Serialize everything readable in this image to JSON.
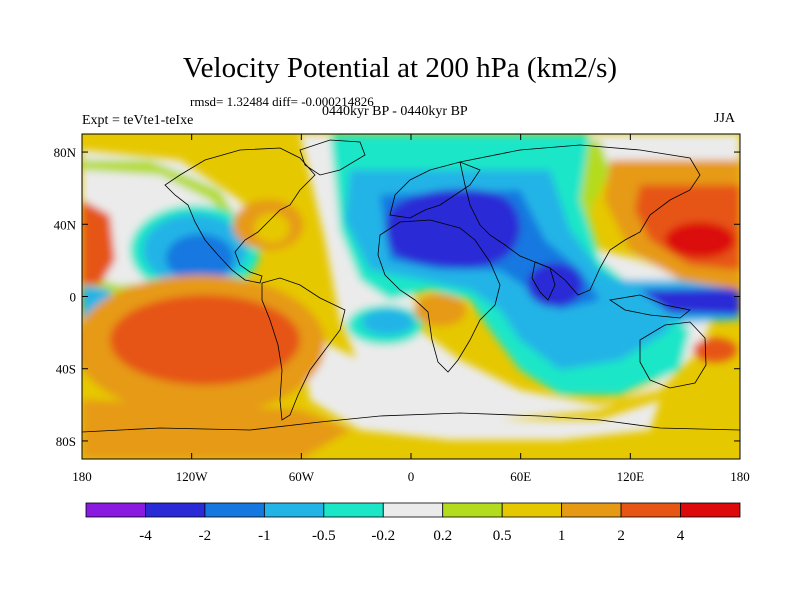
{
  "figure": {
    "title": "Velocity Potential at 200 hPa (km2/s)",
    "stats": "rmsd= 1.32484 diff= -0.000214826",
    "experiment": "Expt = teVte1-teIxe",
    "period": "0440kyr BP - 0440kyr BP",
    "season": "JJA"
  },
  "map": {
    "longitude_range": [
      -180,
      180
    ],
    "latitude_range": [
      -90,
      90
    ],
    "x_tick_labels": [
      {
        "lon": -180,
        "label": "180"
      },
      {
        "lon": -120,
        "label": "120W"
      },
      {
        "lon": -60,
        "label": "60W"
      },
      {
        "lon": 0,
        "label": "0"
      },
      {
        "lon": 60,
        "label": "60E"
      },
      {
        "lon": 120,
        "label": "120E"
      },
      {
        "lon": 180,
        "label": "180"
      }
    ],
    "y_tick_labels": [
      {
        "lat": 80,
        "label": "80N"
      },
      {
        "lat": 40,
        "label": "40N"
      },
      {
        "lat": 0,
        "label": "0"
      },
      {
        "lat": -40,
        "label": "40S"
      },
      {
        "lat": -80,
        "label": "80S"
      }
    ]
  },
  "colorbar": {
    "colors": [
      "#8a1ae0",
      "#2a2ad6",
      "#1478e0",
      "#22b4e6",
      "#1ce6c8",
      "#ebebeb",
      "#b4dc1e",
      "#e6c800",
      "#e69a14",
      "#e65514",
      "#dc0a0a"
    ],
    "labels": [
      "-4",
      "-2",
      "-1",
      "-0.5",
      "-0.2",
      "0.2",
      "0.5",
      "1",
      "2",
      "4"
    ]
  }
}
